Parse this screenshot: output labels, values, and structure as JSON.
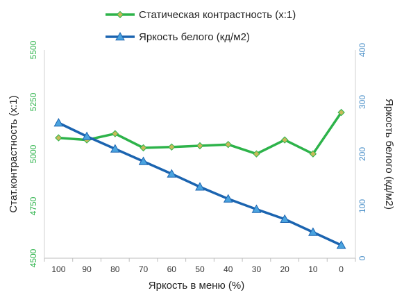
{
  "chart_data": {
    "type": "line",
    "x": [
      100,
      90,
      80,
      70,
      60,
      50,
      40,
      30,
      20,
      10,
      0
    ],
    "xlabel": "Яркость в меню (%)",
    "x_reversed": true,
    "ylabel_left": "Стат.контрастность  (x:1)",
    "ylabel_right": "Яркость белого (кд/м2)",
    "ylim_left": [
      4500,
      5500
    ],
    "yticks_left": [
      4500,
      4750,
      5000,
      5250,
      5500
    ],
    "ylim_right": [
      0,
      400
    ],
    "yticks_right": [
      0,
      100,
      200,
      300,
      400
    ],
    "grid": false,
    "legend_position": "top",
    "series": [
      {
        "name": "Статическая контрастность  (x:1)",
        "axis": "left",
        "color": "#2db34a",
        "marker": "diamond",
        "marker_color": "#c7ba5a",
        "values": [
          5078,
          5068,
          5098,
          5030,
          5034,
          5040,
          5046,
          5001,
          5068,
          5001,
          5200
        ]
      },
      {
        "name": "Яркость белого (кд/м2)",
        "axis": "right",
        "color": "#1b64b0",
        "marker": "triangle",
        "marker_color": "#4aa3df",
        "values": [
          260,
          234,
          210,
          186,
          162,
          137,
          114,
          94,
          75,
          50,
          25
        ]
      }
    ],
    "left_tick_color": "#2db34a",
    "right_tick_color": "#4a8fc8"
  }
}
